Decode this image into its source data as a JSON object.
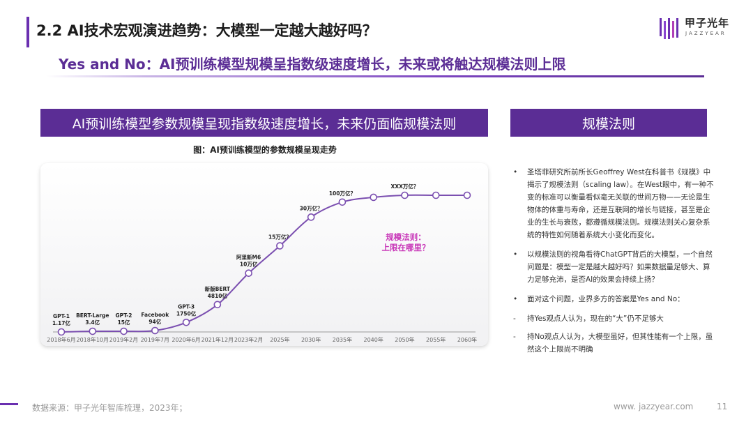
{
  "header": {
    "title": "2.2 AI技术宏观演进趋势：大模型一定越大越好吗？",
    "subtitle": "Yes and No：AI预训练模型规模呈指数级速度增长，未来或将触达规模法则上限"
  },
  "logo": {
    "name": "甲子光年",
    "en": "JAZZYEAR"
  },
  "left_panel": {
    "header": "AI预训练模型参数规模呈现指数级速度增长，未来仍面临规模法则",
    "chart_title": "图：AI预训练模型的参数规模呈现走势"
  },
  "chart_data": {
    "type": "line",
    "categories": [
      "2018年6月",
      "2018年10月",
      "2019年2月",
      "2019年7月",
      "2020年6月",
      "2021年12月",
      "2023年2月",
      "2025年",
      "2030年",
      "2035年",
      "2040年",
      "2050年",
      "2055年",
      "2060年"
    ],
    "point_labels": [
      [
        "GPT-1",
        "1.17亿"
      ],
      [
        "BERT-Large",
        "3.4亿"
      ],
      [
        "GPT-2",
        "15亿"
      ],
      [
        "Facebook",
        "94亿"
      ],
      [
        "GPT-3",
        "1750亿"
      ],
      [
        "新版BERT",
        "4810亿"
      ],
      [
        "阿里新M6",
        "10万亿"
      ],
      [
        "15万亿？"
      ],
      [
        "30万亿？"
      ],
      [
        "100万亿？"
      ],
      [],
      [
        "XXX万亿？"
      ],
      [],
      []
    ],
    "relative_level": [
      0.0,
      0.005,
      0.005,
      0.01,
      0.07,
      0.2,
      0.43,
      0.63,
      0.84,
      0.95,
      0.985,
      1.0,
      1.0,
      1.0
    ],
    "annotation": [
      "规模法则：",
      "上限在哪里？"
    ],
    "colors": {
      "line": "#7b4fb0",
      "point_fill": "#ffffff",
      "annotation": "#c837b8"
    }
  },
  "right_panel": {
    "header": "规模法则",
    "bullets": [
      {
        "mark": "•",
        "text": "圣塔菲研究所前所长Geoffrey West在科普书《规模》中揭示了规模法则（scaling law）。在West眼中，有一种不变的标准可以衡量看似毫无关联的世间万物——无论是生物体的体重与寿命，还是互联网的增长与链接，甚至是企业的生长与衰败，都遵循规模法则。规模法则关心复杂系统的特性如何随着系统大小变化而变化。"
      },
      {
        "mark": "•",
        "text": "以规模法则的视角看待ChatGPT背后的大模型，一个自然问题是：模型一定是越大越好吗？如果数据量足够大、算力足够充沛，是否AI的效果会持续上扬？"
      },
      {
        "mark": "•",
        "text": "面对这个问题，业界多方的答案是Yes and No："
      },
      {
        "mark": "-",
        "text": "持Yes观点人认为，现在的“大”仍不足够大"
      },
      {
        "mark": "-",
        "text": "持No观点人认为，大模型虽好，但其性能有一个上限，虽然这个上限尚不明确"
      }
    ]
  },
  "footer": {
    "source": "数据来源：甲子光年智库梳理，2023年；",
    "website": "www. jazzyear.com",
    "page": "11"
  }
}
